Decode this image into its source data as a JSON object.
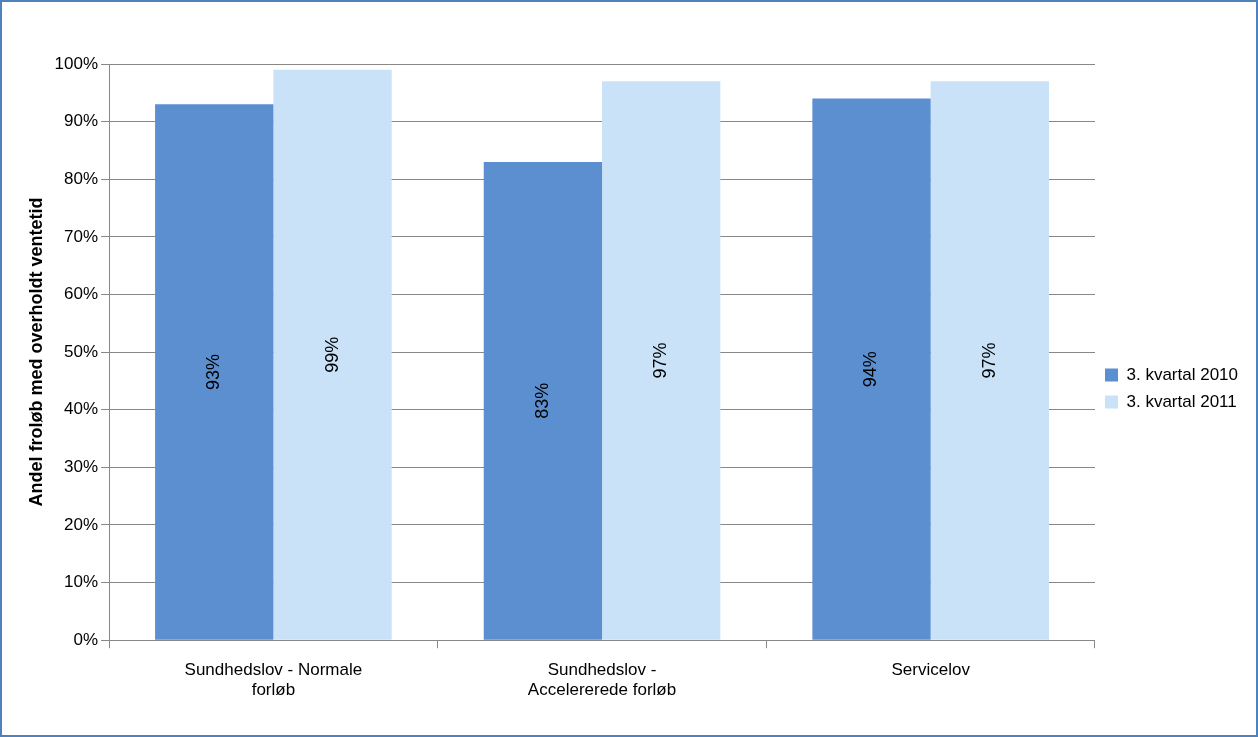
{
  "chart_data": {
    "type": "bar",
    "ylabel": "Andel froløb med overholdt ventetid",
    "categories": [
      "Sundhedslov - Normale forløb",
      "Sundhedslov - Accelererede forløb",
      "Servicelov"
    ],
    "series": [
      {
        "name": "3. kvartal 2010",
        "color": "#5b8fd0",
        "values": [
          93,
          83,
          94
        ],
        "value_labels": [
          "93%",
          "83%",
          "94%"
        ]
      },
      {
        "name": "3. kvartal 2011",
        "color": "#c9e2f8",
        "values": [
          99,
          97,
          97
        ],
        "value_labels": [
          "99%",
          "97%",
          "97%"
        ]
      }
    ],
    "ylim": [
      0,
      100
    ],
    "yticks": [
      {
        "value": 0,
        "label": "0%"
      },
      {
        "value": 10,
        "label": "10%"
      },
      {
        "value": 20,
        "label": "20%"
      },
      {
        "value": 30,
        "label": "30%"
      },
      {
        "value": 40,
        "label": "40%"
      },
      {
        "value": 50,
        "label": "50%"
      },
      {
        "value": 60,
        "label": "60%"
      },
      {
        "value": 70,
        "label": "70%"
      },
      {
        "value": 80,
        "label": "80%"
      },
      {
        "value": 90,
        "label": "90%"
      },
      {
        "value": 100,
        "label": "100%"
      }
    ],
    "grid": "y",
    "legend": "right"
  }
}
